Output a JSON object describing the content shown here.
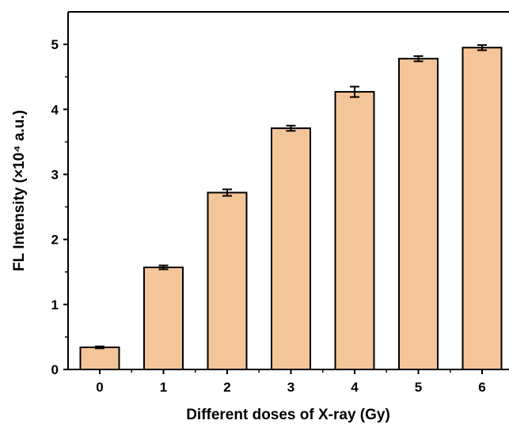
{
  "chart_data": {
    "type": "bar",
    "categories": [
      "0",
      "1",
      "2",
      "3",
      "4",
      "5",
      "6"
    ],
    "values": [
      0.34,
      1.57,
      2.72,
      3.71,
      4.27,
      4.78,
      4.95
    ],
    "errors": [
      0.015,
      0.03,
      0.05,
      0.04,
      0.08,
      0.04,
      0.04
    ],
    "title": "",
    "xlabel": "Different doses of X-ray (Gy)",
    "ylabel": "FL Intensity (×10⁴ a.u.)",
    "ylim": [
      0,
      5.5
    ],
    "yticks": [
      "0",
      "1",
      "2",
      "3",
      "4",
      "5"
    ],
    "grid": false,
    "legend": "none",
    "bar_color": "#f5c59a",
    "edge_color": "#000000"
  }
}
